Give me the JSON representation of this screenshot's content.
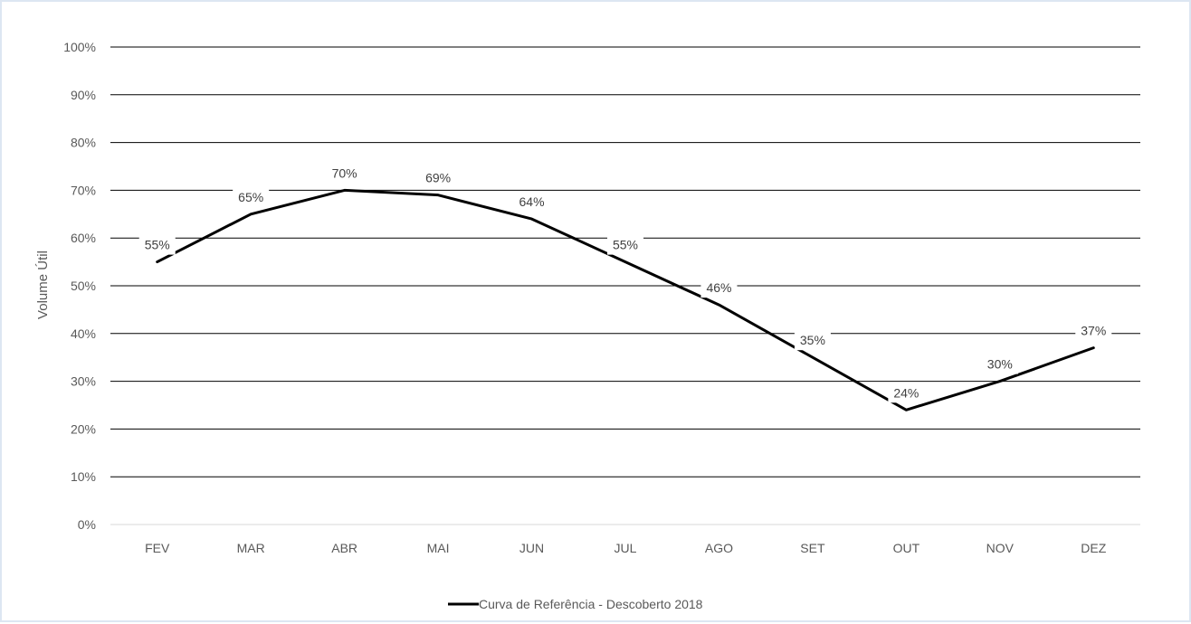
{
  "chart_data": {
    "type": "line",
    "title": "",
    "xlabel": "",
    "ylabel": "Volume Útil",
    "categories": [
      "FEV",
      "MAR",
      "ABR",
      "MAI",
      "JUN",
      "JUL",
      "AGO",
      "SET",
      "OUT",
      "NOV",
      "DEZ"
    ],
    "series": [
      {
        "name": "Curva de Referência - Descoberto 2018",
        "values": [
          55,
          65,
          70,
          69,
          64,
          55,
          46,
          35,
          24,
          30,
          37
        ],
        "data_labels": [
          "55%",
          "65%",
          "70%",
          "69%",
          "64%",
          "55%",
          "46%",
          "35%",
          "24%",
          "30%",
          "37%"
        ],
        "color": "#000000"
      }
    ],
    "ylim": [
      0,
      100
    ],
    "yticks": [
      0,
      10,
      20,
      30,
      40,
      50,
      60,
      70,
      80,
      90,
      100
    ],
    "ytick_labels": [
      "0%",
      "10%",
      "20%",
      "30%",
      "40%",
      "50%",
      "60%",
      "70%",
      "80%",
      "90%",
      "100%"
    ],
    "grid": true,
    "legend": "bottom",
    "colors": {
      "gridline": "#000000",
      "series": "#000000",
      "frame_border": "#dde6f2"
    }
  }
}
